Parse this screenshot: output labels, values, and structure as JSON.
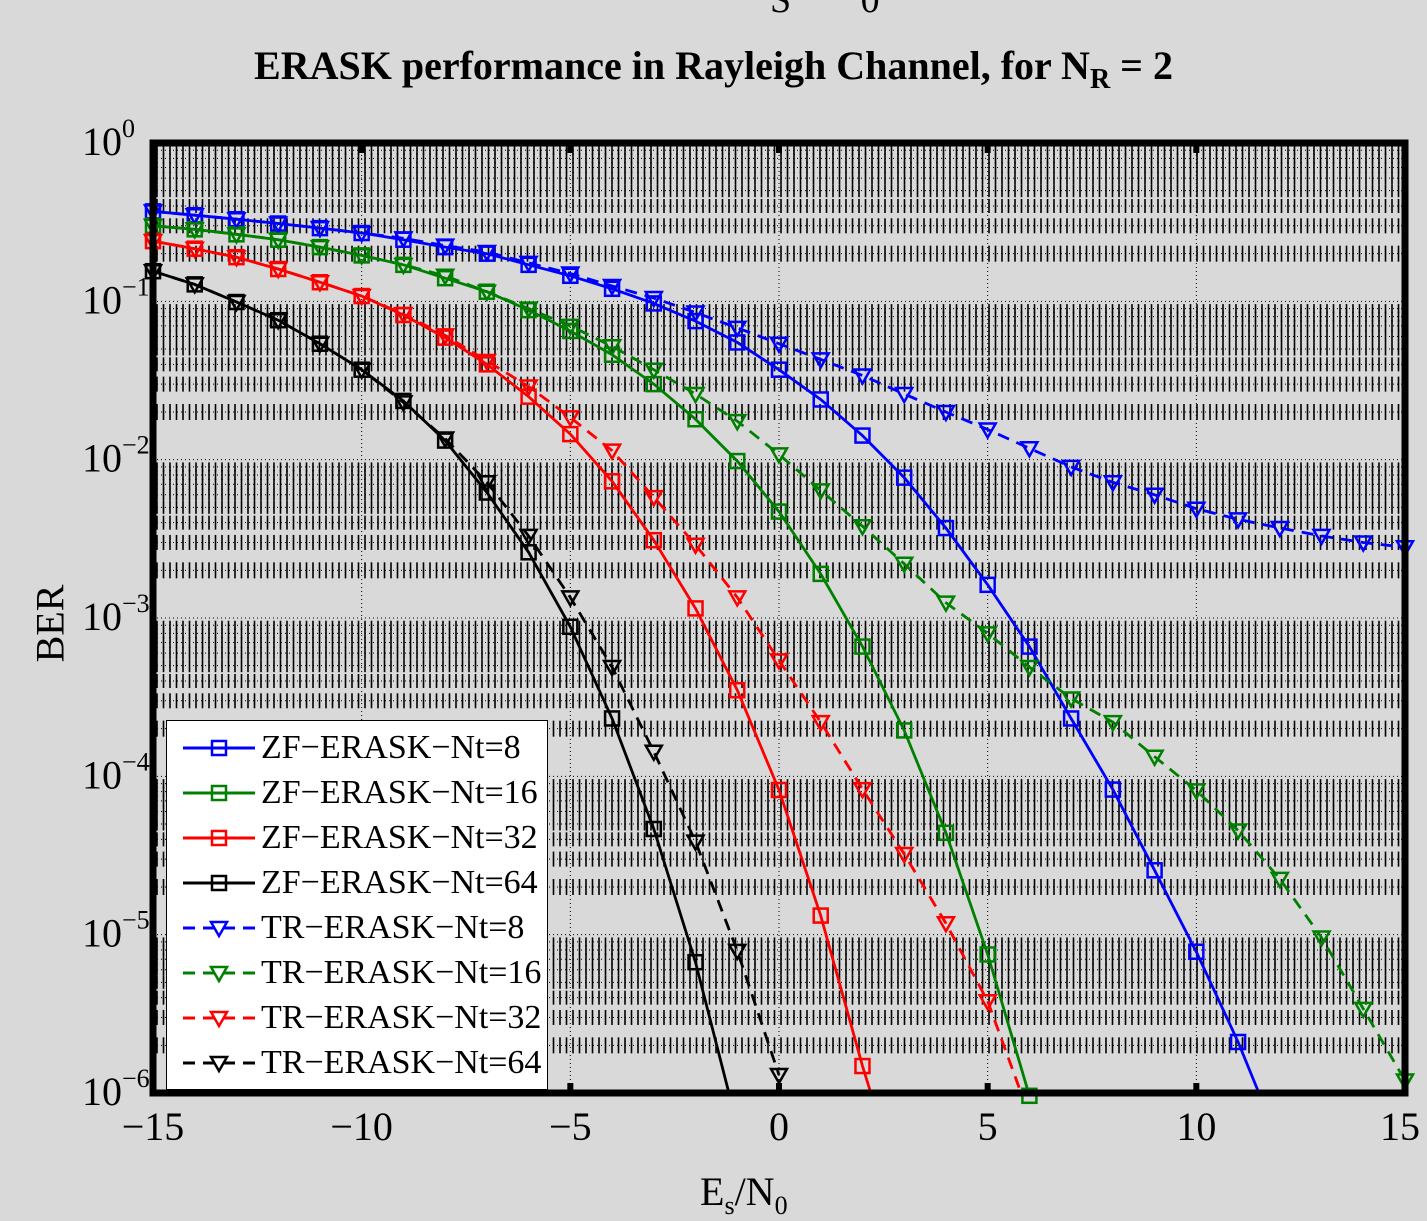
{
  "title": "ERASK performance in Rayleigh Channel, for N",
  "title_sub": "R",
  "title_tail": " = 2",
  "top_fragment": "S 0",
  "chart_data": {
    "type": "line",
    "title": "ERASK performance in Rayleigh Channel, for N_R = 2",
    "xlabel": "E_s/N_0",
    "ylabel": "BER",
    "xlim": [
      -15,
      15
    ],
    "ylim": [
      1e-06,
      1
    ],
    "yscale": "log",
    "grid": true,
    "legend_position": "bottom-left",
    "x_ticks": [
      "−15",
      "−10",
      "−5",
      "0",
      "5",
      "10",
      "15"
    ],
    "y_ticks": [
      {
        "base": "10",
        "exp": "0"
      },
      {
        "base": "10",
        "exp": "−1"
      },
      {
        "base": "10",
        "exp": "−2"
      },
      {
        "base": "10",
        "exp": "−3"
      },
      {
        "base": "10",
        "exp": "−4"
      },
      {
        "base": "10",
        "exp": "−5"
      },
      {
        "base": "10",
        "exp": "−6"
      }
    ],
    "series": [
      {
        "name": "ZF−ERASK−Nt=8",
        "color": "#0000ff",
        "dash": false,
        "marker": "square",
        "x": [
          -15,
          -14,
          -13,
          -12,
          -11,
          -10,
          -9,
          -8,
          -7,
          -6,
          -5,
          -4,
          -3,
          -2,
          -1,
          0,
          1,
          2,
          3,
          4,
          5,
          6,
          7,
          8,
          9,
          10,
          11,
          11.5
        ],
        "y": [
          0.37,
          0.35,
          0.33,
          0.31,
          0.29,
          0.27,
          0.245,
          0.22,
          0.2,
          0.17,
          0.145,
          0.12,
          0.097,
          0.075,
          0.055,
          0.037,
          0.024,
          0.0142,
          0.0077,
          0.0037,
          0.00162,
          0.00066,
          0.000232,
          8.25e-05,
          2.55e-05,
          7.8e-06,
          2.1e-06,
          1e-06
        ]
      },
      {
        "name": "ZF−ERASK−Nt=16",
        "color": "#008000",
        "dash": false,
        "marker": "square",
        "x": [
          -15,
          -14,
          -13,
          -12,
          -11,
          -10,
          -9,
          -8,
          -7,
          -6,
          -5,
          -4,
          -3,
          -2,
          -1,
          0,
          1,
          2,
          3,
          4,
          5,
          6
        ],
        "y": [
          0.3,
          0.285,
          0.265,
          0.245,
          0.22,
          0.195,
          0.17,
          0.14,
          0.115,
          0.088,
          0.065,
          0.046,
          0.03,
          0.018,
          0.0098,
          0.0047,
          0.0019,
          0.00066,
          0.000195,
          4.4e-05,
          7.5e-06,
          9.6e-07
        ]
      },
      {
        "name": "ZF−ERASK−Nt=32",
        "color": "#ff0000",
        "dash": false,
        "marker": "square",
        "x": [
          -15,
          -14,
          -13,
          -12,
          -11,
          -10,
          -9,
          -8,
          -7,
          -6,
          -5,
          -4,
          -3,
          -2,
          -1,
          0,
          1,
          2,
          2.2
        ],
        "y": [
          0.24,
          0.215,
          0.19,
          0.16,
          0.132,
          0.108,
          0.082,
          0.059,
          0.04,
          0.025,
          0.0145,
          0.0073,
          0.0031,
          0.00115,
          0.00035,
          8.2e-05,
          1.32e-05,
          1.48e-06,
          1e-06
        ]
      },
      {
        "name": "ZF−ERASK−Nt=64",
        "color": "#000000",
        "dash": false,
        "marker": "square",
        "x": [
          -15,
          -14,
          -13,
          -12,
          -11,
          -10,
          -9,
          -8,
          -7,
          -6,
          -5,
          -4,
          -3,
          -2,
          -1.2
        ],
        "y": [
          0.155,
          0.128,
          0.099,
          0.076,
          0.054,
          0.037,
          0.0235,
          0.0132,
          0.0062,
          0.0026,
          0.00088,
          0.000232,
          4.65e-05,
          6.7e-06,
          1e-06
        ]
      },
      {
        "name": "TR−ERASK−Nt=8",
        "color": "#0000ff",
        "dash": true,
        "marker": "triangle-down",
        "x": [
          -15,
          -14,
          -13,
          -12,
          -11,
          -10,
          -9,
          -8,
          -7,
          -6,
          -5,
          -4,
          -3,
          -2,
          -1,
          0,
          1,
          2,
          3,
          4,
          5,
          6,
          7,
          8,
          9,
          10,
          11,
          12,
          13,
          14,
          15
        ],
        "y": [
          0.37,
          0.35,
          0.33,
          0.31,
          0.29,
          0.27,
          0.25,
          0.225,
          0.205,
          0.175,
          0.15,
          0.125,
          0.105,
          0.085,
          0.068,
          0.054,
          0.043,
          0.034,
          0.026,
          0.02,
          0.0155,
          0.0118,
          0.009,
          0.0072,
          0.006,
          0.0049,
          0.0042,
          0.0037,
          0.0033,
          0.003,
          0.0028
        ]
      },
      {
        "name": "TR−ERASK−Nt=16",
        "color": "#008000",
        "dash": true,
        "marker": "triangle-down",
        "x": [
          -15,
          -14,
          -13,
          -12,
          -11,
          -10,
          -9,
          -8,
          -7,
          -6,
          -5,
          -4,
          -3,
          -2,
          -1,
          0,
          1,
          2,
          3,
          4,
          5,
          6,
          7,
          8,
          9,
          10,
          11,
          12,
          13,
          14,
          15
        ],
        "y": [
          0.3,
          0.285,
          0.265,
          0.245,
          0.22,
          0.195,
          0.17,
          0.145,
          0.115,
          0.09,
          0.07,
          0.052,
          0.037,
          0.026,
          0.0175,
          0.0108,
          0.0064,
          0.0038,
          0.0022,
          0.00125,
          0.0008,
          0.00049,
          0.00031,
          0.00022,
          0.000133,
          8.15e-05,
          4.55e-05,
          2.25e-05,
          9.6e-06,
          3.4e-06,
          1.2e-06
        ]
      },
      {
        "name": "TR−ERASK−Nt=32",
        "color": "#ff0000",
        "dash": true,
        "marker": "triangle-down",
        "x": [
          -15,
          -14,
          -13,
          -12,
          -11,
          -10,
          -9,
          -8,
          -7,
          -6,
          -5,
          -4,
          -3,
          -2,
          -1,
          0,
          1,
          2,
          3,
          4,
          5,
          5.8
        ],
        "y": [
          0.24,
          0.215,
          0.19,
          0.16,
          0.132,
          0.108,
          0.083,
          0.061,
          0.042,
          0.029,
          0.0185,
          0.0114,
          0.0058,
          0.0029,
          0.00135,
          0.00054,
          0.00022,
          8.3e-05,
          3.23e-05,
          1.18e-05,
          3.8e-06,
          1e-06
        ]
      },
      {
        "name": "TR−ERASK−Nt=64",
        "color": "#000000",
        "dash": true,
        "marker": "triangle-down",
        "x": [
          -15,
          -14,
          -13,
          -12,
          -11,
          -10,
          -9,
          -8,
          -7,
          -6,
          -5,
          -4,
          -3,
          -2,
          -1,
          0
        ],
        "y": [
          0.155,
          0.128,
          0.099,
          0.076,
          0.054,
          0.037,
          0.023,
          0.0136,
          0.0072,
          0.0033,
          0.00135,
          0.00049,
          0.000143,
          3.87e-05,
          7.9e-06,
          1.3e-06
        ]
      }
    ]
  }
}
